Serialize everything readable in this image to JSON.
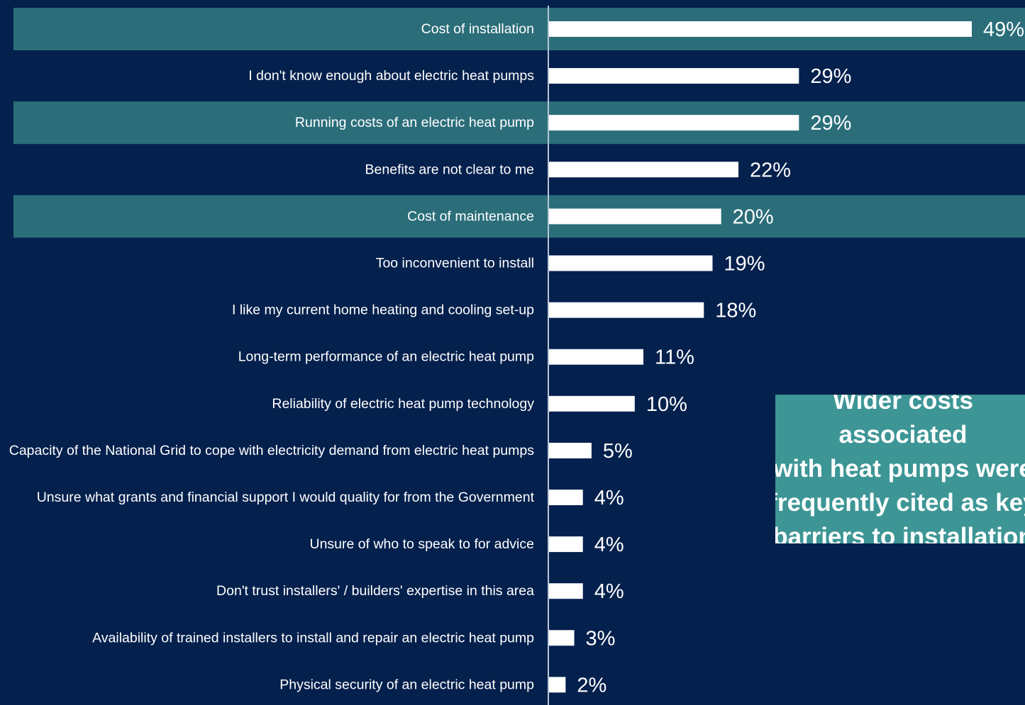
{
  "colors": {
    "background": "#04204d",
    "band": "#2b6e7a",
    "bar": "#ffffff",
    "axis": "#b8c6d6",
    "callout": "#3d9595"
  },
  "chart_data": {
    "type": "bar",
    "orientation": "horizontal",
    "categories": [
      "Cost of installation",
      "I don't know enough about electric heat pumps",
      "Running costs of an electric heat pump",
      "Benefits are not clear to me",
      "Cost of maintenance",
      "Too inconvenient to install",
      "I like my current home heating and cooling set-up",
      "Long-term performance of an electric heat pump",
      "Reliability of electric heat pump technology",
      "Capacity of the National Grid to cope with electricity demand from electric heat pumps",
      "Unsure what grants and financial support I would quality for from the Government",
      "Unsure of who to speak to for advice",
      "Don't trust installers' / builders' expertise in this area",
      "Availability of trained installers to install and repair an electric heat pump",
      "Physical security of an electric heat pump"
    ],
    "values": [
      49,
      29,
      29,
      22,
      20,
      19,
      18,
      11,
      10,
      5,
      4,
      4,
      4,
      3,
      2
    ],
    "value_labels": [
      "49%",
      "29%",
      "29%",
      "22%",
      "20%",
      "19%",
      "18%",
      "11%",
      "10%",
      "5%",
      "4%",
      "4%",
      "4%",
      "3%",
      "2%"
    ],
    "highlighted_rows": [
      0,
      2,
      4
    ],
    "xlim": [
      0,
      49
    ],
    "grid": false,
    "legend": "none"
  },
  "callout": {
    "text": "Wider costs associated\nwith heat pumps were\nfrequently cited as key\nbarriers to installation"
  }
}
